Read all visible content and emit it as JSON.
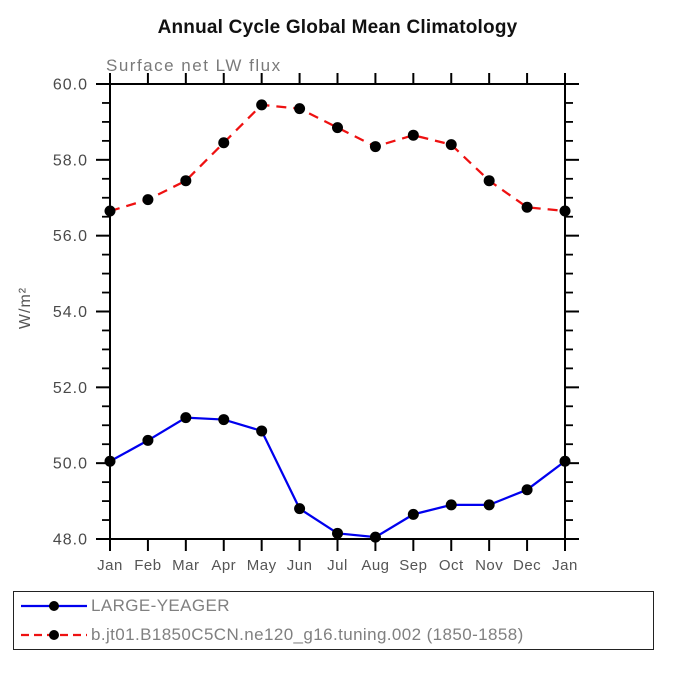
{
  "chart_data": {
    "type": "line",
    "title": "Annual Cycle Global Mean Climatology",
    "subtitle": "Surface net LW flux",
    "ylabel": "W/m²",
    "xlabel": "",
    "categories": [
      "Jan",
      "Feb",
      "Mar",
      "Apr",
      "May",
      "Jun",
      "Jul",
      "Aug",
      "Sep",
      "Oct",
      "Nov",
      "Dec",
      "Jan"
    ],
    "ylim": [
      48.0,
      60.0
    ],
    "ytick_step": 2.0,
    "yminor_step": 0.5,
    "ytick_labels": [
      "48.0",
      "50.0",
      "52.0",
      "54.0",
      "56.0",
      "58.0",
      "60.0"
    ],
    "grid": "off",
    "legend_position": "bottom-left-box",
    "series": [
      {
        "name": "LARGE-YEAGER",
        "color": "#0000ee",
        "line_style": "solid",
        "marker": "filled-circle",
        "marker_color": "#000000",
        "values": [
          50.05,
          50.6,
          51.2,
          51.15,
          50.85,
          48.8,
          48.15,
          48.05,
          48.65,
          48.9,
          48.9,
          49.3,
          50.05
        ]
      },
      {
        "name": "b.jt01.B1850C5CN.ne120_g16.tuning.002 (1850-1858)",
        "color": "#ee1111",
        "line_style": "dashed",
        "marker": "filled-circle",
        "marker_color": "#000000",
        "values": [
          56.65,
          56.95,
          57.45,
          58.45,
          59.45,
          59.35,
          58.85,
          58.35,
          58.65,
          58.4,
          57.45,
          56.75,
          56.65
        ]
      }
    ]
  },
  "colors": {
    "background": "#ffffff",
    "frame": "#000000",
    "title_text": "#111111",
    "subtitle_text": "#7a7a7a",
    "ytick_label": "#4a4a4a",
    "xtick_label": "#555555",
    "legend_text": "#808080"
  }
}
